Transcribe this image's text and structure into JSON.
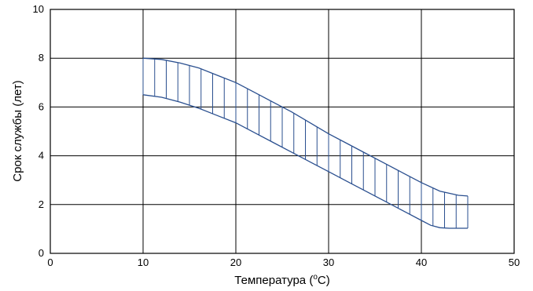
{
  "chart_data": {
    "type": "area",
    "xlabel": "Температура (",
    "xlabel_sup": "o",
    "xlabel_unit": "C)",
    "ylabel": "Срок службы (лет)",
    "xlim": [
      0,
      50
    ],
    "ylim": [
      0,
      10
    ],
    "x_ticks": [
      "0",
      "10",
      "20",
      "30",
      "40",
      "50"
    ],
    "y_ticks": [
      "0",
      "2",
      "4",
      "6",
      "8",
      "10"
    ],
    "grid": true,
    "band_color": "#2a4f8f",
    "series": [
      {
        "role": "upper",
        "x": [
          10,
          12,
          14,
          16,
          18,
          20,
          22,
          24,
          26,
          28,
          30,
          32,
          34,
          36,
          38,
          40,
          42,
          44,
          45
        ],
        "values": [
          8.0,
          7.95,
          7.8,
          7.6,
          7.3,
          7.0,
          6.6,
          6.2,
          5.8,
          5.35,
          4.9,
          4.5,
          4.1,
          3.7,
          3.3,
          2.9,
          2.55,
          2.38,
          2.35
        ]
      },
      {
        "role": "lower",
        "x": [
          10,
          12,
          14,
          16,
          18,
          20,
          22,
          24,
          26,
          28,
          30,
          32,
          34,
          36,
          38,
          40,
          41,
          42,
          43,
          44,
          45
        ],
        "values": [
          6.5,
          6.4,
          6.2,
          5.95,
          5.65,
          5.35,
          4.95,
          4.55,
          4.15,
          3.75,
          3.35,
          2.95,
          2.55,
          2.15,
          1.75,
          1.35,
          1.15,
          1.05,
          1.03,
          1.03,
          1.03
        ]
      }
    ],
    "hatch_step": 1.25
  }
}
